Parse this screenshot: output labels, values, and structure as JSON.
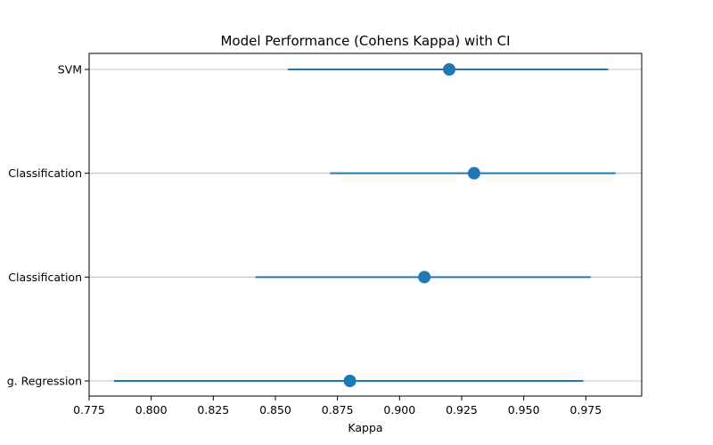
{
  "chart_data": {
    "type": "scatter",
    "title": "Model Performance (Cohens Kappa) with CI",
    "xlabel": "Kappa",
    "ylabel": "",
    "xlim": [
      0.775,
      0.9975
    ],
    "xticks": [
      0.775,
      0.8,
      0.825,
      0.85,
      0.875,
      0.9,
      0.925,
      0.95,
      0.975
    ],
    "xtick_labels": [
      "0.775",
      "0.800",
      "0.825",
      "0.850",
      "0.875",
      "0.900",
      "0.925",
      "0.950",
      "0.975"
    ],
    "categories": [
      "SVM",
      "Classification",
      "Classification",
      "g. Regression"
    ],
    "series": [
      {
        "values": [
          0.92,
          0.93,
          0.91,
          0.88
        ],
        "ci_lower": [
          0.855,
          0.872,
          0.842,
          0.785
        ],
        "ci_upper": [
          0.984,
          0.987,
          0.977,
          0.974
        ]
      }
    ],
    "grid": "y",
    "legend": "none",
    "colors": {
      "series": "#1f77b4",
      "grid": "#b0b0b0",
      "axis": "#000000"
    }
  }
}
